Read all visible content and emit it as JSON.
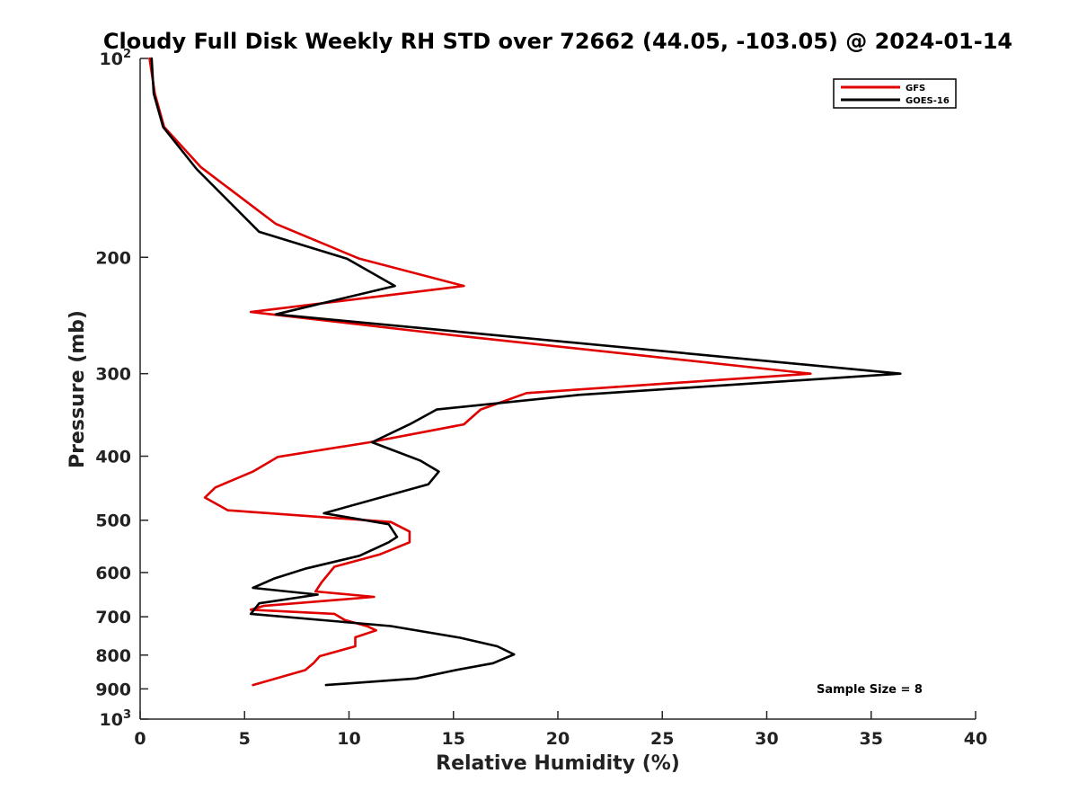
{
  "chart_data": {
    "type": "line",
    "title": "Cloudy Full Disk Weekly RH STD over 72662 (44.05, -103.05) @ 2024-01-14",
    "xlabel": "Relative Humidity (%)",
    "ylabel": "Pressure (mb)",
    "xlim": [
      0,
      40
    ],
    "ylim": [
      100,
      1000
    ],
    "y_scale": "log",
    "y_reversed": true,
    "xticks": [
      0,
      5,
      10,
      15,
      20,
      25,
      30,
      35,
      40
    ],
    "xtick_labels": [
      "0",
      "5",
      "10",
      "15",
      "20",
      "25",
      "30",
      "35",
      "40"
    ],
    "yticks": [
      100,
      200,
      300,
      400,
      500,
      600,
      700,
      800,
      900,
      1000
    ],
    "ytick_labels": [
      {
        "base": "10",
        "exp": "2"
      },
      {
        "base": "200",
        "exp": ""
      },
      {
        "base": "300",
        "exp": ""
      },
      {
        "base": "400",
        "exp": ""
      },
      {
        "base": "500",
        "exp": ""
      },
      {
        "base": "600",
        "exp": ""
      },
      {
        "base": "700",
        "exp": ""
      },
      {
        "base": "800",
        "exp": ""
      },
      {
        "base": "900",
        "exp": ""
      },
      {
        "base": "10",
        "exp": "3"
      }
    ],
    "grid": false,
    "legend_position": "top-right",
    "annotation": "Sample Size = 8",
    "series": [
      {
        "name": "GFS",
        "color": "#e00000",
        "points": [
          [
            0.45,
            100
          ],
          [
            0.7,
            113
          ],
          [
            1.15,
            127
          ],
          [
            2.9,
            146
          ],
          [
            6.5,
            178
          ],
          [
            10.5,
            201
          ],
          [
            15.5,
            221
          ],
          [
            5.3,
            242
          ],
          [
            15.3,
            263
          ],
          [
            32.1,
            300
          ],
          [
            18.5,
            321
          ],
          [
            16.3,
            340
          ],
          [
            15.5,
            358
          ],
          [
            11.0,
            381
          ],
          [
            6.6,
            401
          ],
          [
            5.4,
            422
          ],
          [
            3.6,
            446
          ],
          [
            3.1,
            462
          ],
          [
            4.2,
            483
          ],
          [
            12.0,
            503
          ],
          [
            12.9,
            520
          ],
          [
            12.9,
            540
          ],
          [
            11.5,
            563
          ],
          [
            9.3,
            588
          ],
          [
            8.7,
            620
          ],
          [
            8.4,
            641
          ],
          [
            11.2,
            653
          ],
          [
            5.9,
            674
          ],
          [
            5.3,
            683
          ],
          [
            9.3,
            693
          ],
          [
            9.8,
            708
          ],
          [
            10.9,
            724
          ],
          [
            11.3,
            734
          ],
          [
            10.3,
            752
          ],
          [
            10.3,
            776
          ],
          [
            8.6,
            803
          ],
          [
            8.3,
            823
          ],
          [
            7.9,
            843
          ],
          [
            5.4,
            888
          ]
        ]
      },
      {
        "name": "GOES-16",
        "color": "#000000",
        "points": [
          [
            0.55,
            100
          ],
          [
            0.65,
            113
          ],
          [
            1.1,
            127
          ],
          [
            2.7,
            147
          ],
          [
            5.7,
            183
          ],
          [
            9.9,
            201
          ],
          [
            12.2,
            221
          ],
          [
            6.5,
            244
          ],
          [
            36.4,
            300
          ],
          [
            21.0,
            323
          ],
          [
            14.2,
            340
          ],
          [
            12.9,
            358
          ],
          [
            11.1,
            381
          ],
          [
            13.4,
            406
          ],
          [
            14.3,
            422
          ],
          [
            13.8,
            441
          ],
          [
            8.8,
            488
          ],
          [
            11.9,
            507
          ],
          [
            12.3,
            530
          ],
          [
            11.9,
            540
          ],
          [
            10.5,
            566
          ],
          [
            7.9,
            592
          ],
          [
            6.4,
            613
          ],
          [
            5.4,
            633
          ],
          [
            8.5,
            648
          ],
          [
            5.7,
            668
          ],
          [
            5.3,
            693
          ],
          [
            12.0,
            723
          ],
          [
            15.3,
            753
          ],
          [
            17.1,
            776
          ],
          [
            17.9,
            798
          ],
          [
            16.9,
            823
          ],
          [
            15.1,
            843
          ],
          [
            13.2,
            868
          ],
          [
            8.9,
            888
          ]
        ]
      }
    ]
  }
}
